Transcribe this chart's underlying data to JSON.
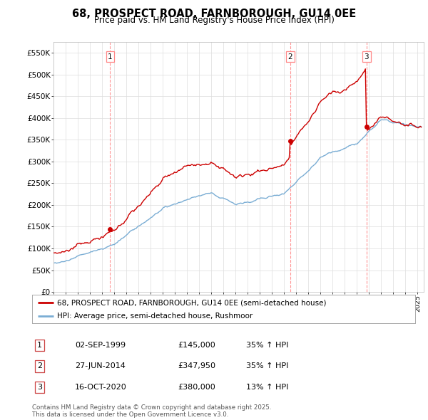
{
  "title": "68, PROSPECT ROAD, FARNBOROUGH, GU14 0EE",
  "subtitle": "Price paid vs. HM Land Registry's House Price Index (HPI)",
  "ylabel_ticks": [
    "£0",
    "£50K",
    "£100K",
    "£150K",
    "£200K",
    "£250K",
    "£300K",
    "£350K",
    "£400K",
    "£450K",
    "£500K",
    "£550K"
  ],
  "ytick_values": [
    0,
    50000,
    100000,
    150000,
    200000,
    250000,
    300000,
    350000,
    400000,
    450000,
    500000,
    550000
  ],
  "ylim": [
    0,
    575000
  ],
  "xlim_start": 1995.0,
  "xlim_end": 2025.5,
  "transactions": [
    {
      "num": 1,
      "date_x": 1999.67,
      "price": 145000,
      "label": "02-SEP-1999",
      "pct": "35%",
      "dir": "↑"
    },
    {
      "num": 2,
      "date_x": 2014.49,
      "price": 347950,
      "label": "27-JUN-2014",
      "pct": "35%",
      "dir": "↑"
    },
    {
      "num": 3,
      "date_x": 2020.79,
      "price": 380000,
      "label": "16-OCT-2020",
      "pct": "13%",
      "dir": "↑"
    }
  ],
  "red_line_color": "#cc0000",
  "blue_line_color": "#7aadd4",
  "vline_color": "#ff8888",
  "legend_label_red": "68, PROSPECT ROAD, FARNBOROUGH, GU14 0EE (semi-detached house)",
  "legend_label_blue": "HPI: Average price, semi-detached house, Rushmoor",
  "footer": "Contains HM Land Registry data © Crown copyright and database right 2025.\nThis data is licensed under the Open Government Licence v3.0.",
  "table_rows": [
    [
      "1",
      "02-SEP-1999",
      "£145,000",
      "35% ↑ HPI"
    ],
    [
      "2",
      "27-JUN-2014",
      "£347,950",
      "35% ↑ HPI"
    ],
    [
      "3",
      "16-OCT-2020",
      "£380,000",
      "13% ↑ HPI"
    ]
  ],
  "background_color": "#ffffff",
  "grid_color": "#dddddd"
}
